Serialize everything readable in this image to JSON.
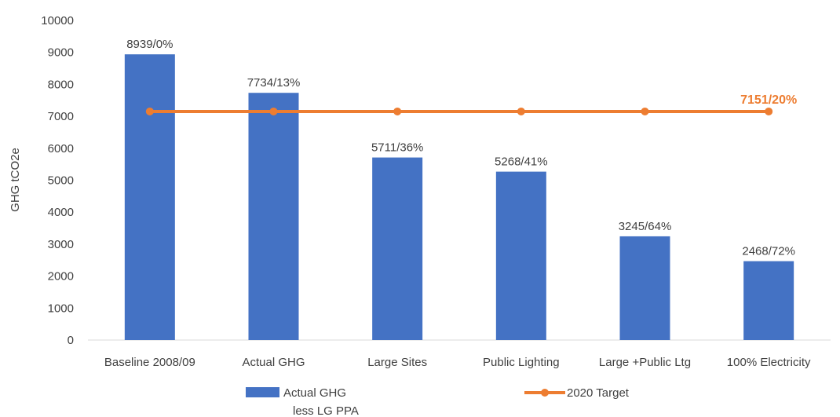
{
  "chart_data": {
    "type": "bar",
    "title": "",
    "xlabel": "",
    "ylabel": "GHG tCO2e",
    "ylim": [
      0,
      10000
    ],
    "yticks": [
      0,
      1000,
      2000,
      3000,
      4000,
      5000,
      6000,
      7000,
      8000,
      9000,
      10000
    ],
    "categories": [
      "Baseline 2008/09",
      "Actual GHG",
      "Large Sites",
      "Public Lighting",
      "Large +Public Ltg",
      "100% Electricity"
    ],
    "series": [
      {
        "name": "Actual GHG less LG PPA",
        "type": "bar",
        "color": "#4472c4",
        "values": [
          8939,
          7734,
          5711,
          5268,
          3245,
          2468
        ],
        "labels": [
          "8939/0%",
          "7734/13%",
          "5711/36%",
          "5268/41%",
          "3245/64%",
          "2468/72%"
        ]
      },
      {
        "name": "2020 Target",
        "type": "line",
        "color": "#ed7d31",
        "values": [
          7151,
          7151,
          7151,
          7151,
          7151,
          7151
        ],
        "label": "7151/20%"
      }
    ],
    "legend": {
      "position": "bottom",
      "bar_label_lines": [
        "Actual GHG",
        "less LG PPA"
      ],
      "line_label": "2020 Target"
    },
    "grid": false
  }
}
